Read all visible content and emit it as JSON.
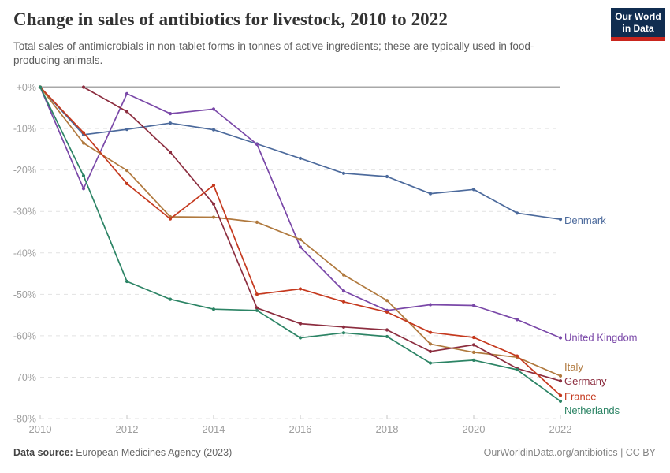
{
  "header": {
    "title": "Change in sales of antibiotics for livestock, 2010 to 2022",
    "subtitle": "Total sales of antimicrobials in non-tablet forms in tonnes of active ingredients; these are typically used in food-producing animals.",
    "logo": {
      "line1": "Our World",
      "line2": "in Data",
      "bg_color": "#102D50",
      "stripe_color": "#C9251D",
      "text_color": "#FFFFFF"
    }
  },
  "chart_data": {
    "type": "line",
    "title": "Change in sales of antibiotics for livestock, 2010 to 2022",
    "xlabel": "",
    "ylabel": "",
    "unit": "%",
    "x": [
      2010,
      2011,
      2012,
      2013,
      2014,
      2015,
      2016,
      2017,
      2018,
      2019,
      2020,
      2021,
      2022
    ],
    "series": [
      {
        "name": "Denmark",
        "color": "#4C6A9C",
        "values": [
          0,
          -11.5,
          -10.2,
          -8.7,
          -10.3,
          -13.7,
          -17.2,
          -20.8,
          -21.6,
          -25.7,
          -24.7,
          -30.4,
          -31.9
        ]
      },
      {
        "name": "United Kingdom",
        "color": "#7A48A8",
        "values": [
          0,
          -24.5,
          -1.6,
          -6.4,
          -5.3,
          -13.8,
          -38.6,
          -49.2,
          -53.9,
          -52.5,
          -52.7,
          -56.1,
          -60.5
        ]
      },
      {
        "name": "Italy",
        "color": "#B0793E",
        "values": [
          0,
          -13.5,
          -20.1,
          -31.3,
          -31.4,
          -32.6,
          -36.8,
          -45.3,
          -51.5,
          -62.0,
          -64.0,
          -65.2,
          -69.7
        ]
      },
      {
        "name": "Germany",
        "color": "#8C2D3F",
        "values": [
          null,
          0,
          -5.9,
          -15.7,
          -28.2,
          -53.3,
          -57.1,
          -57.9,
          -58.6,
          -63.8,
          -62.2,
          -67.9,
          -70.9
        ]
      },
      {
        "name": "France",
        "color": "#C5391E",
        "values": [
          0,
          -11.0,
          -23.3,
          -31.8,
          -23.7,
          -50.0,
          -48.7,
          -51.8,
          -54.3,
          -59.2,
          -60.4,
          -64.9,
          -74.4
        ]
      },
      {
        "name": "Netherlands",
        "color": "#2C8465",
        "values": [
          0,
          -21.4,
          -46.9,
          -51.2,
          -53.6,
          -53.9,
          -60.5,
          -59.3,
          -60.2,
          -66.6,
          -65.9,
          -68.2,
          -75.8
        ]
      }
    ],
    "y_ticks": [
      {
        "value": 0,
        "label": "+0%"
      },
      {
        "value": -10,
        "label": "-10%"
      },
      {
        "value": -20,
        "label": "-20%"
      },
      {
        "value": -30,
        "label": "-30%"
      },
      {
        "value": -40,
        "label": "-40%"
      },
      {
        "value": -50,
        "label": "-50%"
      },
      {
        "value": -60,
        "label": "-60%"
      },
      {
        "value": -70,
        "label": "-70%"
      },
      {
        "value": -80,
        "label": "-80%"
      }
    ],
    "x_ticks": [
      2010,
      2012,
      2014,
      2016,
      2018,
      2020,
      2022
    ],
    "ylim": [
      -80,
      0
    ],
    "xlim": [
      2010,
      2022
    ],
    "grid": "horizontal-dashed",
    "legend_position": "right-of-line-ends"
  },
  "footer": {
    "source_label": "Data source:",
    "source_value": " European Medicines Agency (2023)",
    "credit": "OurWorldinData.org/antibiotics | CC BY"
  }
}
